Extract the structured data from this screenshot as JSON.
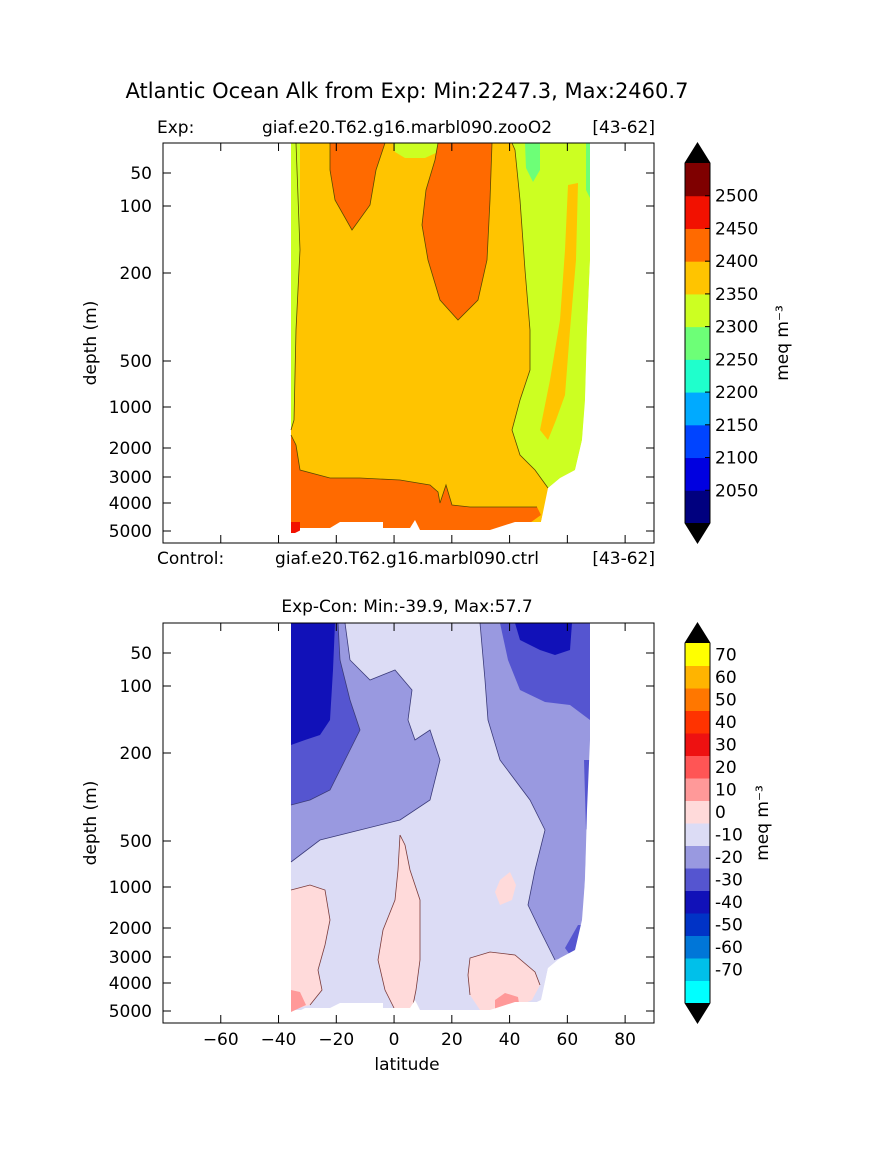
{
  "figure": {
    "suptitle": "Atlantic Ocean Alk from Exp: Min:2247.3, Max:2460.7"
  },
  "chart_data": [
    {
      "type": "contour",
      "panel": "top",
      "header_left": "Exp:",
      "header_center": "giaf.e20.T62.g16.marbl090.zooO2",
      "header_right": "[43-62]",
      "footer_left": "Control:",
      "footer_center": "giaf.e20.T62.g16.marbl090.ctrl",
      "footer_right": "[43-62]",
      "ylabel": "depth (m)",
      "yticks": [
        50,
        100,
        200,
        500,
        1000,
        2000,
        3000,
        4000,
        5000
      ],
      "ylim": [
        5500,
        0
      ],
      "xlim": [
        -80,
        90
      ],
      "data_extent_lat": [
        -34,
        68
      ],
      "colorbar": {
        "label": "meq m⁻³",
        "tick_labels": [
          "2050",
          "2100",
          "2150",
          "2200",
          "2250",
          "2300",
          "2350",
          "2400",
          "2450",
          "2500"
        ],
        "levels": [
          2000,
          2050,
          2100,
          2150,
          2200,
          2250,
          2300,
          2350,
          2400,
          2450,
          2500,
          2550
        ],
        "colors": [
          "#00007f",
          "#0000e0",
          "#0044ff",
          "#00aaff",
          "#1fffcc",
          "#6dff77",
          "#ccff22",
          "#ffc400",
          "#ff6a00",
          "#f21100",
          "#7f0000"
        ],
        "extend": "both",
        "over_color": "#000000",
        "under_color": "#000000"
      }
    },
    {
      "type": "contour",
      "panel": "bottom",
      "title": "Exp-Con: Min:-39.9, Max:57.7",
      "xlabel": "latitude",
      "ylabel": "depth (m)",
      "xticks": [
        -60,
        -40,
        -20,
        0,
        20,
        40,
        60,
        80
      ],
      "xtick_labels": [
        "−60",
        "−40",
        "−20",
        "0",
        "20",
        "40",
        "60",
        "80"
      ],
      "yticks": [
        50,
        100,
        200,
        500,
        1000,
        2000,
        3000,
        4000,
        5000
      ],
      "ylim": [
        5500,
        0
      ],
      "xlim": [
        -80,
        90
      ],
      "data_extent_lat": [
        -34,
        68
      ],
      "colorbar": {
        "label": "meq m⁻³",
        "tick_labels": [
          "70",
          "60",
          "50",
          "40",
          "30",
          "20",
          "10",
          "0",
          "-10",
          "-20",
          "-30",
          "-40",
          "-50",
          "-60",
          "-70"
        ],
        "levels": [
          -80,
          -70,
          -60,
          -50,
          -40,
          -30,
          -20,
          -10,
          0,
          10,
          20,
          30,
          40,
          50,
          60,
          70,
          80
        ],
        "colors": [
          "#00ffff",
          "#00c0ea",
          "#0076d8",
          "#0033c6",
          "#1111b8",
          "#5555d0",
          "#9999e0",
          "#dcdcf5",
          "#ffdada",
          "#ff9999",
          "#ff5555",
          "#ee1111",
          "#ff3300",
          "#ff7700",
          "#ffb400",
          "#ffff00"
        ],
        "extend": "both",
        "over_color": "#000000",
        "under_color": "#000000"
      }
    }
  ]
}
